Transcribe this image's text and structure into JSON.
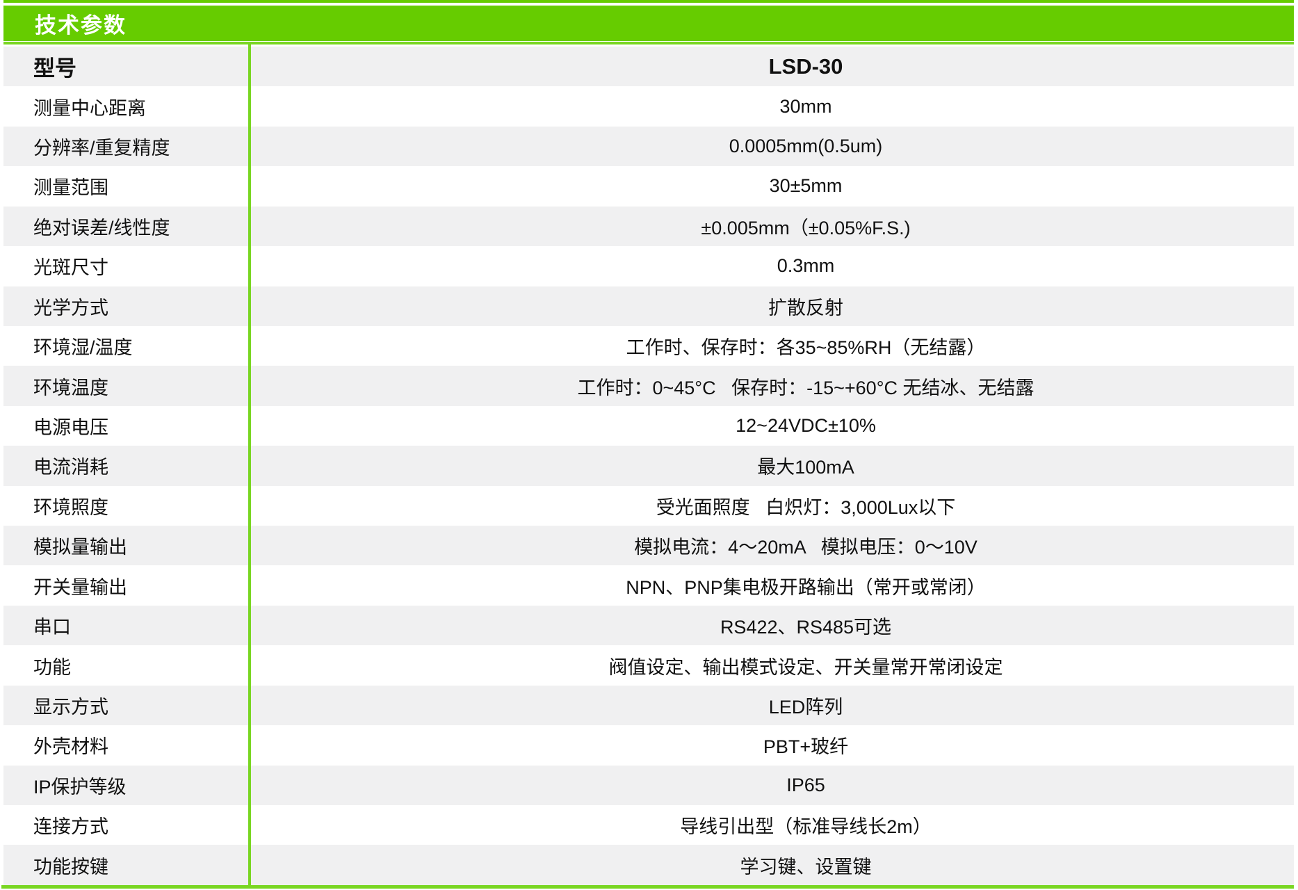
{
  "title_bar": {
    "title": "技术参数"
  },
  "colors": {
    "header_green": "#66cc00",
    "line_green": "#79d622",
    "row_gray": "#f0f0f1",
    "text": "#111111",
    "title_text": "#ffffff"
  },
  "table": {
    "rows": [
      {
        "label": "型号",
        "value": "LSD-30",
        "emphasis": true
      },
      {
        "label": "测量中心距离",
        "value": "30mm"
      },
      {
        "label": "分辨率/重复精度",
        "value": "0.0005mm(0.5um)"
      },
      {
        "label": "测量范围",
        "value": "30±5mm"
      },
      {
        "label": "绝对误差/线性度",
        "value": "±0.005mm（±0.05%F.S.)"
      },
      {
        "label": "光斑尺寸",
        "value": "0.3mm"
      },
      {
        "label": "光学方式",
        "value": "扩散反射"
      },
      {
        "label": "环境湿/温度",
        "value": "工作时、保存时：各35~85%RH（无结露）"
      },
      {
        "label": "环境温度",
        "value": "工作时：0~45°C   保存时：-15~+60°C 无结冰、无结露"
      },
      {
        "label": "电源电压",
        "value": "12~24VDC±10%"
      },
      {
        "label": "电流消耗",
        "value": "最大100mA"
      },
      {
        "label": "环境照度",
        "value": "受光面照度   白炽灯：3,000Lux以下"
      },
      {
        "label": "模拟量输出",
        "value": "模拟电流：4～20mA   模拟电压：0～10V"
      },
      {
        "label": "开关量输出",
        "value": "NPN、PNP集电极开路输出（常开或常闭）"
      },
      {
        "label": "串口",
        "value": "RS422、RS485可选"
      },
      {
        "label": "功能",
        "value": "阀值设定、输出模式设定、开关量常开常闭设定"
      },
      {
        "label": "显示方式",
        "value": "LED阵列"
      },
      {
        "label": "外壳材料",
        "value": "PBT+玻纤"
      },
      {
        "label": "IP保护等级",
        "value": "IP65"
      },
      {
        "label": "连接方式",
        "value": "导线引出型（标准导线长2m）"
      },
      {
        "label": "功能按键",
        "value": "学习键、设置键"
      }
    ]
  }
}
